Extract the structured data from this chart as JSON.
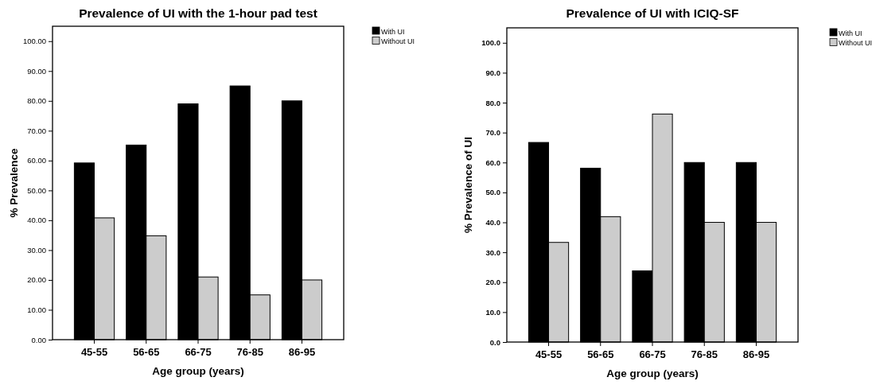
{
  "chart_data": [
    {
      "type": "bar",
      "title": "Prevalence of UI with the 1-hour pad test",
      "xlabel": "Age group (years)",
      "ylabel": "% Prevalence",
      "categories": [
        "45-55",
        "56-65",
        "66-75",
        "76-85",
        "86-95"
      ],
      "series": [
        {
          "name": "With UI",
          "color": "#000000",
          "values": [
            59.2,
            65.2,
            79.0,
            85.0,
            80.0
          ]
        },
        {
          "name": "Without UI",
          "color": "#cccccc",
          "values": [
            40.8,
            34.8,
            21.0,
            15.0,
            20.0
          ]
        }
      ],
      "ylim": [
        0,
        105
      ],
      "yticks": [
        {
          "value": 0,
          "label": "0.00"
        },
        {
          "value": 10,
          "label": "10.00"
        },
        {
          "value": 20,
          "label": "20.00"
        },
        {
          "value": 30,
          "label": "30.00"
        },
        {
          "value": 40,
          "label": "40.00"
        },
        {
          "value": 50,
          "label": "50.00"
        },
        {
          "value": 60,
          "label": "60.00"
        },
        {
          "value": 70,
          "label": "70.00"
        },
        {
          "value": 80,
          "label": "80.00"
        },
        {
          "value": 90,
          "label": "90.00"
        },
        {
          "value": 100,
          "label": "100.00"
        }
      ],
      "grid": false,
      "legend": "top right"
    },
    {
      "type": "bar",
      "title": "Prevalence of UI with ICIQ-SF",
      "xlabel": "Age group (years)",
      "ylabel": "% Prevalence of UI",
      "categories": [
        "45-55",
        "56-65",
        "66-75",
        "76-85",
        "86-95"
      ],
      "series": [
        {
          "name": "With UI",
          "color": "#000000",
          "values": [
            66.7,
            58.1,
            23.8,
            60.0,
            60.0
          ]
        },
        {
          "name": "Without UI",
          "color": "#cccccc",
          "values": [
            33.3,
            41.9,
            76.2,
            40.0,
            40.0
          ]
        }
      ],
      "ylim": [
        0,
        105
      ],
      "yticks": [
        {
          "value": 0,
          "label": "0.0"
        },
        {
          "value": 10,
          "label": "10.0"
        },
        {
          "value": 20,
          "label": "20.0"
        },
        {
          "value": 30,
          "label": "30.0"
        },
        {
          "value": 40,
          "label": "40.0"
        },
        {
          "value": 50,
          "label": "50.0"
        },
        {
          "value": 60,
          "label": "60.0"
        },
        {
          "value": 70,
          "label": "70.0"
        },
        {
          "value": 80,
          "label": "80.0"
        },
        {
          "value": 90,
          "label": "90.0"
        },
        {
          "value": 100,
          "label": "100.0"
        }
      ],
      "grid": false,
      "legend": "top right"
    }
  ]
}
